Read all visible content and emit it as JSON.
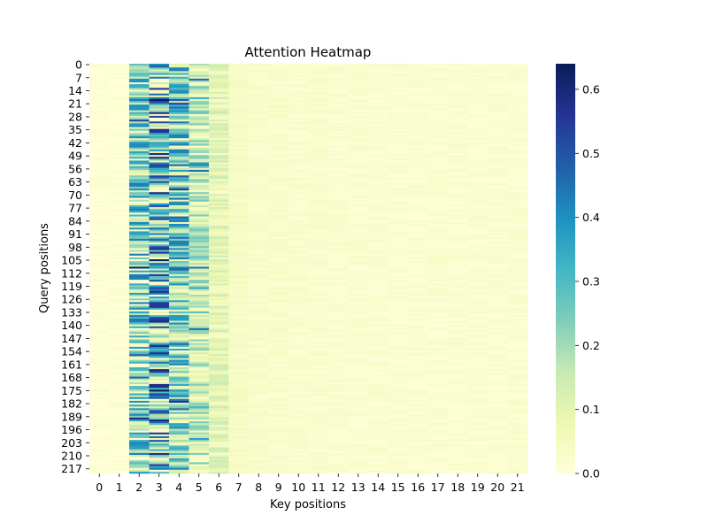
{
  "chart_data": {
    "type": "heatmap",
    "title": "Attention Heatmap",
    "xlabel": "Key positions",
    "ylabel": "Query positions",
    "n_keys": 22,
    "n_queries": 220,
    "x_tick_labels": [
      "0",
      "1",
      "2",
      "3",
      "4",
      "5",
      "6",
      "7",
      "8",
      "9",
      "10",
      "11",
      "12",
      "13",
      "14",
      "15",
      "16",
      "17",
      "18",
      "19",
      "20",
      "21"
    ],
    "y_tick_labels": [
      "0",
      "7",
      "14",
      "21",
      "28",
      "35",
      "42",
      "49",
      "56",
      "63",
      "70",
      "77",
      "84",
      "91",
      "98",
      "105",
      "112",
      "119",
      "126",
      "133",
      "140",
      "147",
      "154",
      "161",
      "168",
      "175",
      "182",
      "189",
      "196",
      "203",
      "210",
      "217"
    ],
    "colorbar": {
      "min": 0.0,
      "max": 0.64,
      "ticks": [
        0.0,
        0.1,
        0.2,
        0.3,
        0.4,
        0.5,
        0.6
      ],
      "tick_labels": [
        "0.0",
        "0.1",
        "0.2",
        "0.3",
        "0.4",
        "0.5",
        "0.6"
      ],
      "colormap": "YlGnBu",
      "stops": [
        "#ffffd9",
        "#edf8b1",
        "#c7e9b4",
        "#7fcdbb",
        "#41b6c4",
        "#1d91c0",
        "#225ea8",
        "#253494",
        "#081d58"
      ]
    },
    "column_mean_attention": [
      0.01,
      0.01,
      0.22,
      0.3,
      0.24,
      0.14,
      0.08,
      0.04,
      0.03,
      0.03,
      0.025,
      0.025,
      0.02,
      0.02,
      0.02,
      0.02,
      0.02,
      0.02,
      0.02,
      0.02,
      0.02,
      0.02
    ],
    "values_note": "per-cell values estimated from colour; dense matrix shown"
  }
}
